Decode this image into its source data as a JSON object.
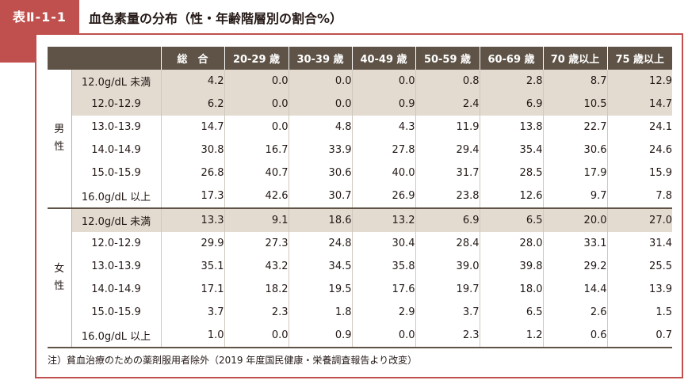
{
  "title": {
    "tab_label": "表Ⅱ-1-1",
    "text": "血色素量の分布（性・年齢階層別の割合%）"
  },
  "table": {
    "headers": [
      "総　合",
      "20-29 歳",
      "30-39 歳",
      "40-49 歳",
      "50-59 歳",
      "60-69 歳",
      "70 歳以上",
      "75 歳以上"
    ],
    "groups": [
      {
        "label_top": "男",
        "label_bottom": "性",
        "rows": [
          {
            "label": "12.0g/dL 未満",
            "values": [
              "4.2",
              "0.0",
              "0.0",
              "0.0",
              "0.8",
              "2.8",
              "8.7",
              "12.9"
            ]
          },
          {
            "label": "12.0-12.9",
            "values": [
              "6.2",
              "0.0",
              "0.0",
              "0.9",
              "2.4",
              "6.9",
              "10.5",
              "14.7"
            ]
          },
          {
            "label": "13.0-13.9",
            "values": [
              "14.7",
              "0.0",
              "4.8",
              "4.3",
              "11.9",
              "13.8",
              "22.7",
              "24.1"
            ]
          },
          {
            "label": "14.0-14.9",
            "values": [
              "30.8",
              "16.7",
              "33.9",
              "27.8",
              "29.4",
              "35.4",
              "30.6",
              "24.6"
            ]
          },
          {
            "label": "15.0-15.9",
            "values": [
              "26.8",
              "40.7",
              "30.6",
              "40.0",
              "31.7",
              "28.5",
              "17.9",
              "15.9"
            ]
          },
          {
            "label": "16.0g/dL 以上",
            "values": [
              "17.3",
              "42.6",
              "30.7",
              "26.9",
              "23.8",
              "12.6",
              "9.7",
              "7.8"
            ]
          }
        ]
      },
      {
        "label_top": "女",
        "label_bottom": "性",
        "rows": [
          {
            "label": "12.0g/dL 未満",
            "values": [
              "13.3",
              "9.1",
              "18.6",
              "13.2",
              "6.9",
              "6.5",
              "20.0",
              "27.0"
            ]
          },
          {
            "label": "12.0-12.9",
            "values": [
              "29.9",
              "27.3",
              "24.8",
              "30.4",
              "28.4",
              "28.0",
              "33.1",
              "31.4"
            ]
          },
          {
            "label": "13.0-13.9",
            "values": [
              "35.1",
              "43.2",
              "34.5",
              "35.8",
              "39.0",
              "39.8",
              "29.2",
              "25.5"
            ]
          },
          {
            "label": "14.0-14.9",
            "values": [
              "17.1",
              "18.2",
              "19.5",
              "17.6",
              "19.7",
              "18.0",
              "14.4",
              "13.9"
            ]
          },
          {
            "label": "15.0-15.9",
            "values": [
              "3.7",
              "2.3",
              "1.8",
              "2.9",
              "3.7",
              "6.5",
              "2.6",
              "1.5"
            ]
          },
          {
            "label": "16.0g/dL 以上",
            "values": [
              "1.0",
              "0.0",
              "0.9",
              "0.0",
              "2.3",
              "1.2",
              "0.6",
              "0.7"
            ]
          }
        ]
      }
    ],
    "note": "注）貧血治療のための薬剤服用者除外（2019 年度国民健康・栄養調査報告より改変）"
  },
  "colors": {
    "accent": "#c0504d",
    "header_bg": "#5e5346",
    "shaded_row": "#e3dad0"
  }
}
